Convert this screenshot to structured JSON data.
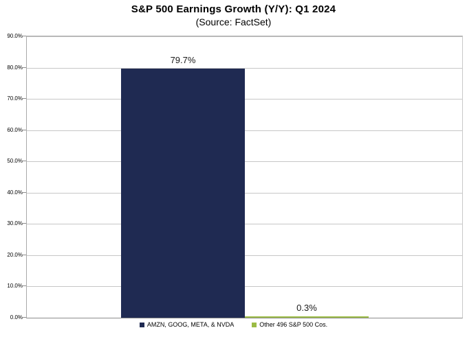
{
  "header": {
    "title": "S&P 500 Earnings Growth (Y/Y): Q1 2024",
    "subtitle": "(Source: FactSet)"
  },
  "chart_data": {
    "type": "bar",
    "title": "S&P 500 Earnings Growth (Y/Y): Q1 2024",
    "subtitle": "(Source: FactSet)",
    "series": [
      {
        "name": "AMZN, GOOG, META, & NVDA",
        "value": 79.7,
        "data_label": "79.7%",
        "color": "#1f2a52"
      },
      {
        "name": "Other 496 S&P 500 Cos.",
        "value": 0.3,
        "data_label": "0.3%",
        "color": "#9bbb45"
      }
    ],
    "ylim": [
      0,
      90
    ],
    "ytick_interval": 10,
    "ytick_labels": [
      "0.0%",
      "10.0%",
      "20.0%",
      "30.0%",
      "40.0%",
      "50.0%",
      "60.0%",
      "70.0%",
      "80.0%",
      "90.0%"
    ],
    "grid": true,
    "legend_position": "bottom",
    "plot_background": "#ffffff"
  },
  "colors": {
    "bar_navy": "#1f2a52",
    "bar_green": "#9bbb45",
    "gridline": "#c6c6c6",
    "axis_line": "#8c8c8c",
    "text": "#000000"
  }
}
